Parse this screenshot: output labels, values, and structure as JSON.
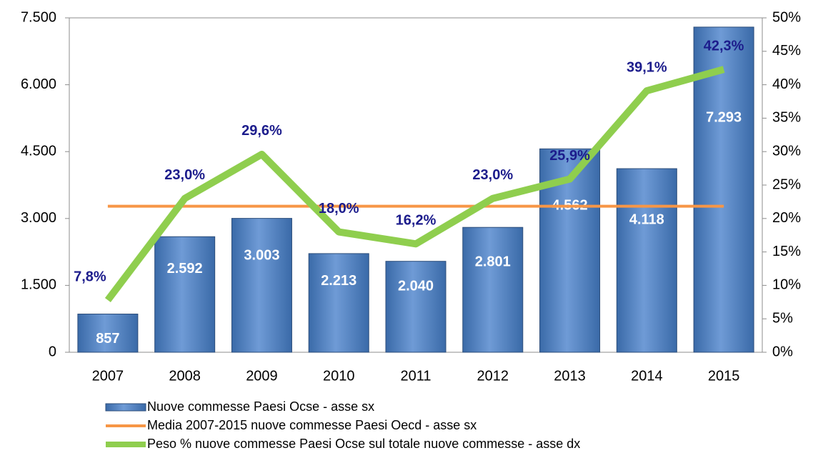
{
  "chart_data": {
    "type": "bar",
    "categories": [
      "2007",
      "2008",
      "2009",
      "2010",
      "2011",
      "2012",
      "2013",
      "2014",
      "2015"
    ],
    "series": [
      {
        "name": "Nuove commesse Paesi Ocse - asse sx",
        "type": "bar",
        "color": "#4f81bd",
        "values": [
          857,
          2592,
          3003,
          2213,
          2040,
          2801,
          4562,
          4118,
          7293
        ],
        "value_labels": [
          "857",
          "2.592",
          "3.003",
          "2.213",
          "2.040",
          "2.801",
          "4.562",
          "4.118",
          "7.293"
        ]
      },
      {
        "name": "Media 2007-2015 nuove commesse Paesi Oecd - asse sx",
        "type": "line",
        "color": "#f79646",
        "values": [
          3275,
          3275,
          3275,
          3275,
          3275,
          3275,
          3275,
          3275,
          3275
        ]
      },
      {
        "name": "Peso % nuove commesse Paesi Ocse sul totale nuove commesse - asse dx",
        "type": "line",
        "color": "#8fce4e",
        "axis": "y2",
        "values": [
          7.8,
          23.0,
          29.6,
          18.0,
          16.2,
          23.0,
          25.9,
          39.1,
          42.3
        ],
        "value_labels": [
          "7,8%",
          "23,0%",
          "29,6%",
          "18,0%",
          "16,2%",
          "23,0%",
          "25,9%",
          "39,1%",
          "42,3%"
        ]
      }
    ],
    "ylim": [
      0,
      7500
    ],
    "yticks": [
      0,
      {
        "value": 1500,
        "label": "1.500"
      },
      {
        "value": 3000,
        "label": "3.000"
      },
      {
        "value": 4500,
        "label": "4.500"
      },
      {
        "value": 6000,
        "label": "6.000"
      },
      {
        "value": 7500,
        "label": "7.500"
      }
    ],
    "y2lim": [
      0,
      50
    ],
    "y2ticks": [
      {
        "value": 0,
        "label": "0%"
      },
      {
        "value": 5,
        "label": "5%"
      },
      {
        "value": 10,
        "label": "10%"
      },
      {
        "value": 15,
        "label": "15%"
      },
      {
        "value": 20,
        "label": "20%"
      },
      {
        "value": 25,
        "label": "25%"
      },
      {
        "value": 30,
        "label": "30%"
      },
      {
        "value": 35,
        "label": "35%"
      },
      {
        "value": 40,
        "label": "40%"
      },
      {
        "value": 45,
        "label": "45%"
      },
      {
        "value": 50,
        "label": "50%"
      }
    ],
    "grid": false
  }
}
